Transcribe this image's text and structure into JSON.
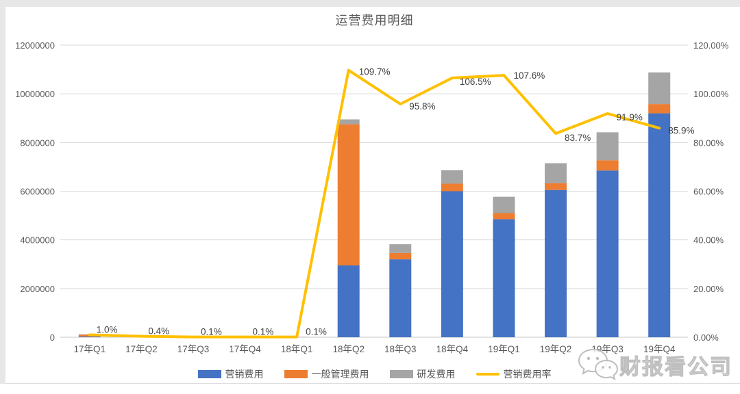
{
  "chart_data": {
    "type": "bar",
    "subtype": "stacked-bar-with-line-combo",
    "title": "运营费用明细",
    "categories": [
      "17年Q1",
      "17年Q2",
      "17年Q3",
      "17年Q4",
      "18年Q1",
      "18年Q2",
      "18年Q3",
      "18年Q4",
      "19年Q1",
      "19年Q2",
      "19年Q3",
      "19年Q4"
    ],
    "series": [
      {
        "name": "营销费用",
        "type": "bar",
        "axis": "left",
        "color": "#4472C4",
        "values": [
          30000,
          10000,
          5000,
          5000,
          5000,
          2950000,
          3200000,
          6000000,
          4850000,
          6050000,
          6850000,
          9200000
        ]
      },
      {
        "name": "一般管理费用",
        "type": "bar",
        "axis": "left",
        "color": "#ED7D31",
        "values": [
          80000,
          10000,
          5000,
          5000,
          5000,
          5800000,
          260000,
          310000,
          250000,
          280000,
          420000,
          380000
        ]
      },
      {
        "name": "研发费用",
        "type": "bar",
        "axis": "left",
        "color": "#A5A5A5",
        "values": [
          10000,
          5000,
          2000,
          2000,
          2000,
          200000,
          360000,
          550000,
          670000,
          820000,
          1150000,
          1300000
        ]
      },
      {
        "name": "营销费用率",
        "type": "line",
        "axis": "right",
        "color": "#FFC000",
        "values": [
          1.0,
          0.4,
          0.1,
          0.1,
          0.1,
          109.7,
          95.8,
          106.5,
          107.6,
          83.7,
          91.9,
          85.9
        ],
        "labels": [
          "1.0%",
          "0.4%",
          "0.1%",
          "0.1%",
          "0.1%",
          "109.7%",
          "95.8%",
          "106.5%",
          "107.6%",
          "83.7%",
          "91.9%",
          "85.9%"
        ]
      }
    ],
    "left_axis": {
      "min": 0,
      "max": 12000000,
      "step": 2000000,
      "ticks": [
        "0",
        "2000000",
        "4000000",
        "6000000",
        "8000000",
        "10000000",
        "12000000"
      ]
    },
    "right_axis": {
      "min": 0,
      "max": 120,
      "step": 20,
      "ticks": [
        "0.00%",
        "20.00%",
        "40.00%",
        "60.00%",
        "80.00%",
        "100.00%",
        "120.00%"
      ]
    },
    "grid": true,
    "stacked": true,
    "legend_position": "bottom",
    "colors": {
      "grid": "#d9d9d9",
      "axis_line": "#c6c6c6",
      "tick_text": "#595959",
      "data_label_text": "#404040",
      "title_text": "#595959"
    }
  },
  "watermark": {
    "text": "财报看公司",
    "icon": "wechat-icon"
  }
}
